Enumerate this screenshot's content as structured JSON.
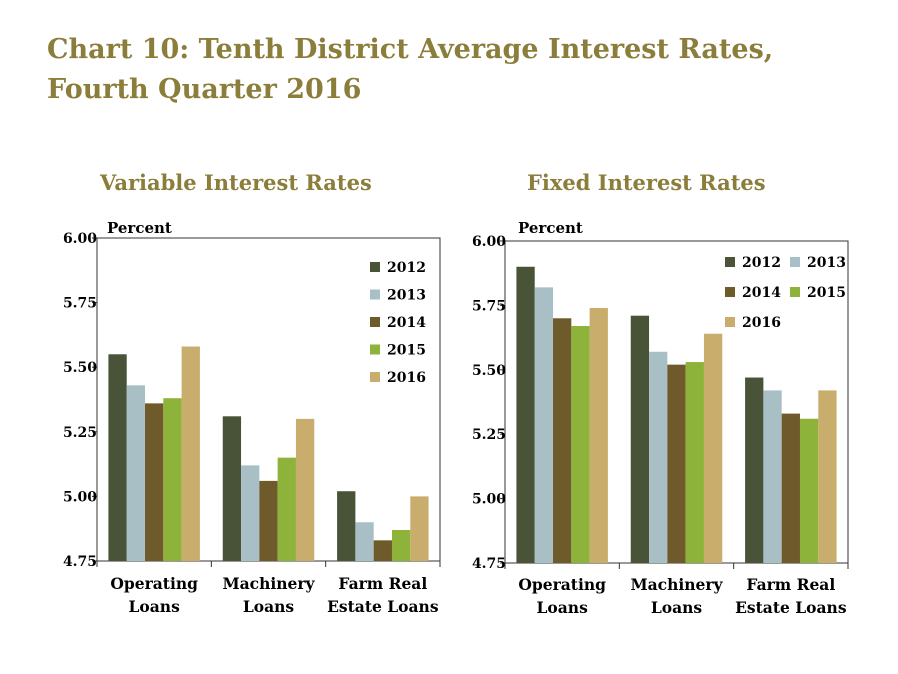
{
  "title_line1": "Chart 10: Tenth District Average Interest Rates,",
  "title_line2": "Fourth Quarter 2016",
  "colors": {
    "title": "#8b7d3a",
    "series": [
      "#485338",
      "#a9bfc6",
      "#6e5a2a",
      "#8db33a",
      "#c8ad6c"
    ]
  },
  "chart_data": [
    {
      "type": "bar",
      "title": "Variable Interest Rates",
      "ylabel": "Percent",
      "ylim": [
        4.75,
        6.0
      ],
      "yticks": [
        "6.00",
        "5.75",
        "5.50",
        "5.25",
        "5.00",
        "4.75"
      ],
      "categories": [
        [
          "Operating",
          "Loans"
        ],
        [
          "Machinery",
          "Loans"
        ],
        [
          "Farm Real",
          "Estate Loans"
        ]
      ],
      "legend_position": "top-right",
      "series": [
        {
          "name": "2012",
          "values": [
            5.55,
            5.31,
            5.02
          ]
        },
        {
          "name": "2013",
          "values": [
            5.43,
            5.12,
            4.9
          ]
        },
        {
          "name": "2014",
          "values": [
            5.36,
            5.06,
            4.83
          ]
        },
        {
          "name": "2015",
          "values": [
            5.38,
            5.15,
            4.87
          ]
        },
        {
          "name": "2016",
          "values": [
            5.58,
            5.3,
            5.0
          ]
        }
      ]
    },
    {
      "type": "bar",
      "title": "Fixed Interest Rates",
      "ylabel": "Percent",
      "ylim": [
        4.75,
        6.0
      ],
      "yticks": [
        "6.00",
        "5.75",
        "5.50",
        "5.25",
        "5.00",
        "4.75"
      ],
      "categories": [
        [
          "Operating",
          "Loans"
        ],
        [
          "Machinery",
          "Loans"
        ],
        [
          "Farm Real",
          "Estate Loans"
        ]
      ],
      "legend_position": "top-right",
      "series": [
        {
          "name": "2012",
          "values": [
            5.9,
            5.71,
            5.47
          ]
        },
        {
          "name": "2013",
          "values": [
            5.82,
            5.57,
            5.42
          ]
        },
        {
          "name": "2014",
          "values": [
            5.7,
            5.52,
            5.33
          ]
        },
        {
          "name": "2015",
          "values": [
            5.67,
            5.53,
            5.31
          ]
        },
        {
          "name": "2016",
          "values": [
            5.74,
            5.64,
            5.42
          ]
        }
      ]
    }
  ]
}
